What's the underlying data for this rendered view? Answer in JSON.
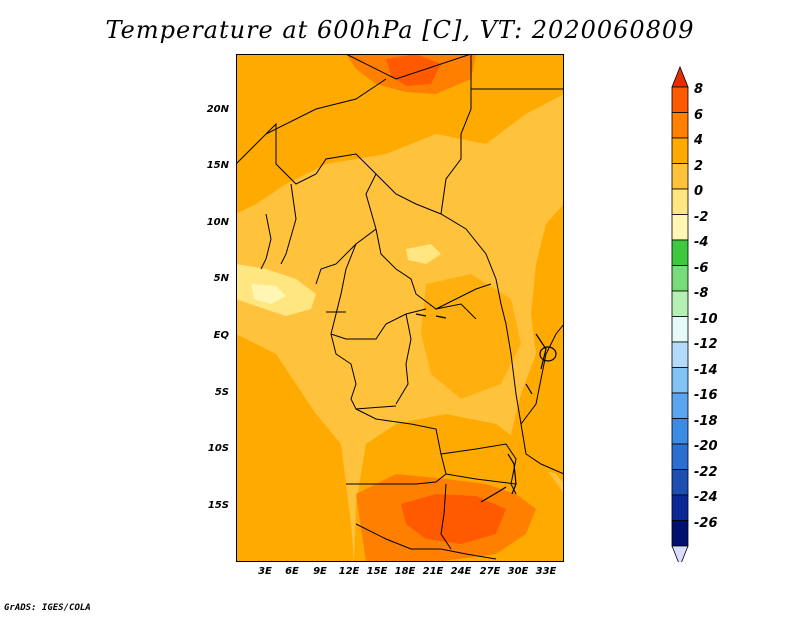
{
  "title": "Temperature at 600hPa [C], VT: 2020060809",
  "credit": "GrADS: IGES/COLA",
  "lat_labels": [
    "20N",
    "15N",
    "10N",
    "5N",
    "EQ",
    "5S",
    "10S",
    "15S"
  ],
  "lon_labels": [
    "3E",
    "6E",
    "9E",
    "12E",
    "15E",
    "18E",
    "21E",
    "24E",
    "27E",
    "30E",
    "33E"
  ],
  "colorbar_labels": [
    "8",
    "6",
    "4",
    "2",
    "0",
    "-2",
    "-4",
    "-6",
    "-8",
    "-10",
    "-12",
    "-14",
    "-16",
    "-18",
    "-20",
    "-22",
    "-24",
    "-26"
  ],
  "colors": {
    "shade_0_2": "#ffc23c",
    "shade_2_4": "#ffaa00",
    "shade_4_6": "#ff8000",
    "shade_6_8": "#ff5a00",
    "shade_neg2_0": "#ffe680",
    "shade_neg4_neg2": "#fff6b4"
  },
  "colorbar_colors": [
    "#e62d00",
    "#ff5a00",
    "#ff8000",
    "#ffaa00",
    "#ffc23c",
    "#ffe680",
    "#fff6b4",
    "#3ec83e",
    "#78dc78",
    "#b4f0b4",
    "#e6fafa",
    "#b4dcfa",
    "#82c3f5",
    "#5aa5f0",
    "#3c8ce6",
    "#2d6ed2",
    "#1e50b4",
    "#0a2896",
    "#00106e",
    "#dcdcff"
  ],
  "chart_data": {
    "type": "heatmap",
    "title": "Temperature at 600hPa [C], VT: 2020060809",
    "variable": "Temperature at 600hPa",
    "units": "C",
    "valid_time": "2020060809",
    "xlim": [
      0,
      35
    ],
    "ylim": [
      -20,
      25
    ],
    "contour_levels": [
      -26,
      -24,
      -22,
      -20,
      -18,
      -16,
      -14,
      -12,
      -10,
      -8,
      -6,
      -4,
      -2,
      0,
      2,
      4,
      6,
      8
    ]
  }
}
